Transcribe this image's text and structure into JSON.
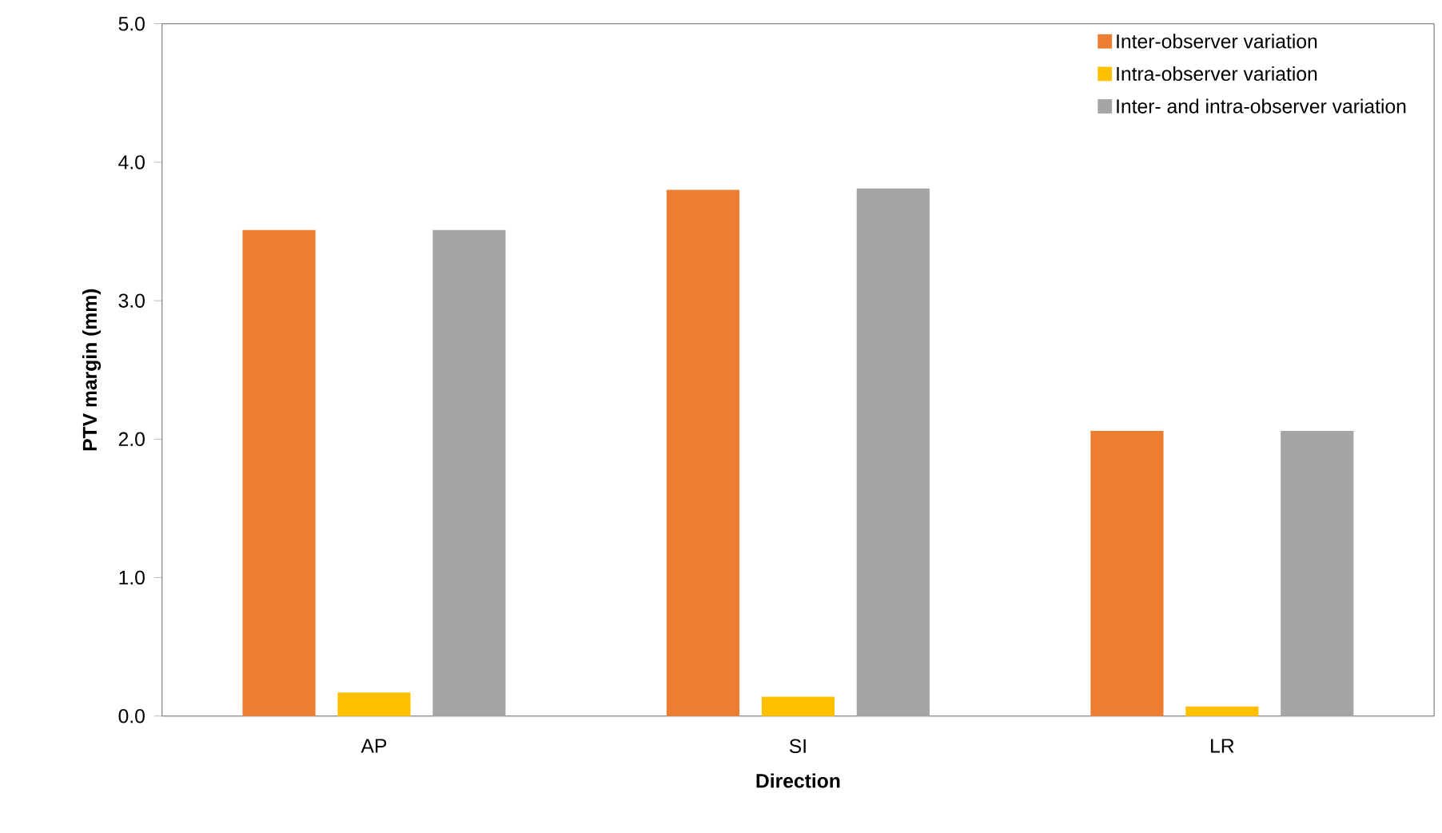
{
  "chart_data": {
    "type": "bar",
    "xlabel": "Direction",
    "ylabel": "PTV margin (mm)",
    "categories": [
      "AP",
      "SI",
      "LR"
    ],
    "series": [
      {
        "name": "Inter-observer variation",
        "color": "#ed7d31",
        "values": [
          3.51,
          3.8,
          2.06
        ]
      },
      {
        "name": "Intra-observer variation",
        "color": "#ffc000",
        "values": [
          0.17,
          0.14,
          0.07
        ]
      },
      {
        "name": "Inter- and intra-observer variation",
        "color": "#a5a5a5",
        "values": [
          3.51,
          3.81,
          2.06
        ]
      }
    ],
    "ylim": [
      0,
      5
    ],
    "yticks": [
      {
        "value": 0,
        "label": "0.0"
      },
      {
        "value": 1,
        "label": "1.0"
      },
      {
        "value": 2,
        "label": "2.0"
      },
      {
        "value": 3,
        "label": "3.0"
      },
      {
        "value": 4,
        "label": "4.0"
      },
      {
        "value": 5,
        "label": "5.0"
      }
    ],
    "grid": false,
    "legend": "top right"
  }
}
